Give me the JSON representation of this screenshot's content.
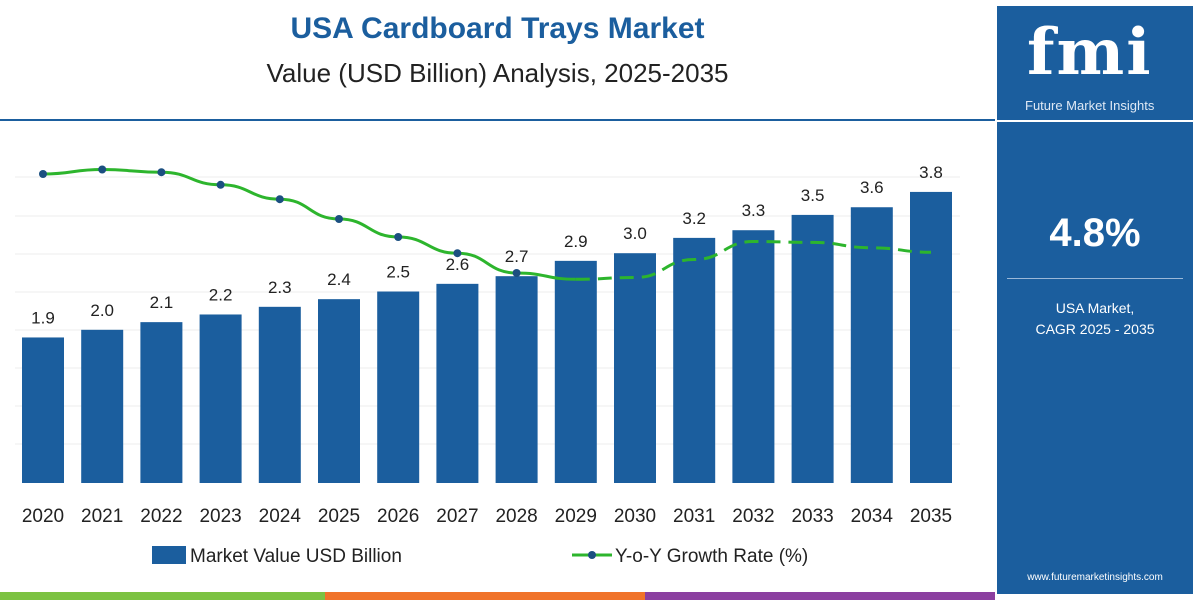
{
  "chart_data": {
    "type": "bar",
    "title": "USA Cardboard Trays Market",
    "subtitle": "Value (USD Billion) Analysis, 2025-2035",
    "categories": [
      "2020",
      "2021",
      "2022",
      "2023",
      "2024",
      "2025",
      "2026",
      "2027",
      "2028",
      "2029",
      "2030",
      "2031",
      "2032",
      "2033",
      "2034",
      "2035"
    ],
    "series": [
      {
        "name": "Market Value USD Billion",
        "type": "bar",
        "color": "#1b5e9e",
        "values": [
          1.9,
          2.0,
          2.1,
          2.2,
          2.3,
          2.4,
          2.5,
          2.6,
          2.7,
          2.9,
          3.0,
          3.2,
          3.3,
          3.5,
          3.6,
          3.8
        ]
      },
      {
        "name": "Y-o-Y Growth Rate (%)",
        "type": "line",
        "color": "#2db52d",
        "values": [
          5.2,
          5.25,
          5.22,
          5.08,
          4.92,
          4.7,
          4.5,
          4.32,
          4.1,
          4.03,
          4.05,
          4.25,
          4.45,
          4.44,
          4.38,
          4.33
        ]
      }
    ],
    "data_labels": [
      "1.9",
      "2.0",
      "2.1",
      "2.2",
      "2.3",
      "2.4",
      "2.5",
      "2.6",
      "2.7",
      "2.9",
      "3.0",
      "3.2",
      "3.3",
      "3.5",
      "3.6",
      "3.8"
    ],
    "grid": true,
    "legend": "bottom"
  },
  "panel": {
    "logo": "fmi",
    "logo_sub": "Future Market Insights",
    "cagr": "4.8%",
    "cap1": "USA Market,",
    "cap2": "CAGR 2025 - 2035",
    "url": "www.futuremarketinsights.com"
  },
  "stripe_colors": [
    "#7cc242",
    "#f0732a",
    "#8b3fa0"
  ]
}
